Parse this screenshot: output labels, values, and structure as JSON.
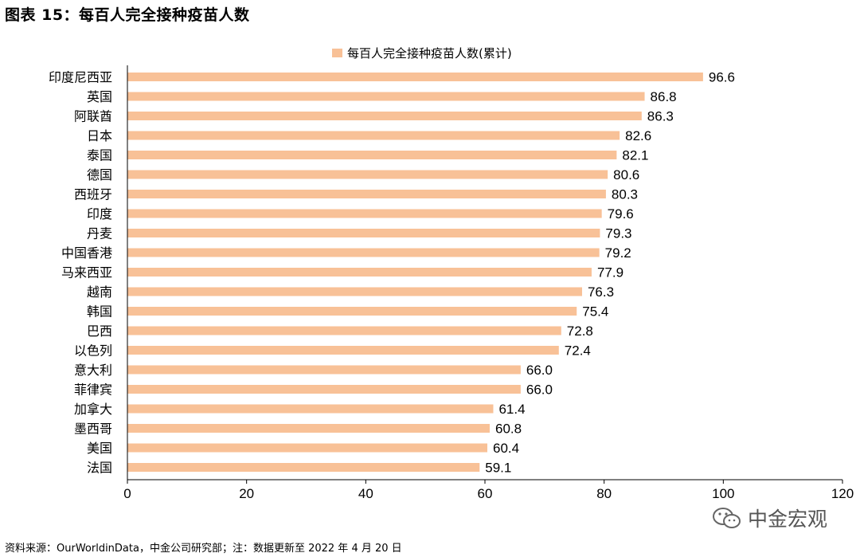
{
  "title": "图表 15：每百人完全接种疫苗人数",
  "source_note": "资料来源：OurWorldinData，中金公司研究部；注：数据更新至 2022 年 4 月 20 日",
  "watermark": {
    "text": "中金宏观",
    "icon": "wechat-icon"
  },
  "colors": {
    "bar": "#F8C197",
    "axis": "#000000"
  },
  "chart_data": {
    "type": "bar",
    "orientation": "horizontal",
    "categories": [
      "印度尼西亚",
      "英国",
      "阿联酋",
      "日本",
      "泰国",
      "德国",
      "西班牙",
      "印度",
      "丹麦",
      "中国香港",
      "马来西亚",
      "越南",
      "韩国",
      "巴西",
      "以色列",
      "意大利",
      "菲律宾",
      "加拿大",
      "墨西哥",
      "美国",
      "法国"
    ],
    "series": [
      {
        "name": "每百人完全接种疫苗人数(累计)",
        "values": [
          96.6,
          86.8,
          86.3,
          82.6,
          82.1,
          80.6,
          80.3,
          79.6,
          79.3,
          79.2,
          77.9,
          76.3,
          75.4,
          72.8,
          72.4,
          66.0,
          66.0,
          61.4,
          60.8,
          60.4,
          59.1
        ],
        "labels": [
          "96.6",
          "86.8",
          "86.3",
          "82.6",
          "82.1",
          "80.6",
          "80.3",
          "79.6",
          "79.3",
          "79.2",
          "77.9",
          "76.3",
          "75.4",
          "72.8",
          "72.4",
          "66.0",
          "66.0",
          "61.4",
          "60.8",
          "60.4",
          "59.1"
        ]
      }
    ],
    "xlim": [
      0,
      120
    ],
    "xticks": [
      "0",
      "20",
      "40",
      "60",
      "80",
      "100",
      "120"
    ],
    "legend_position": "top-center",
    "grid": false
  }
}
